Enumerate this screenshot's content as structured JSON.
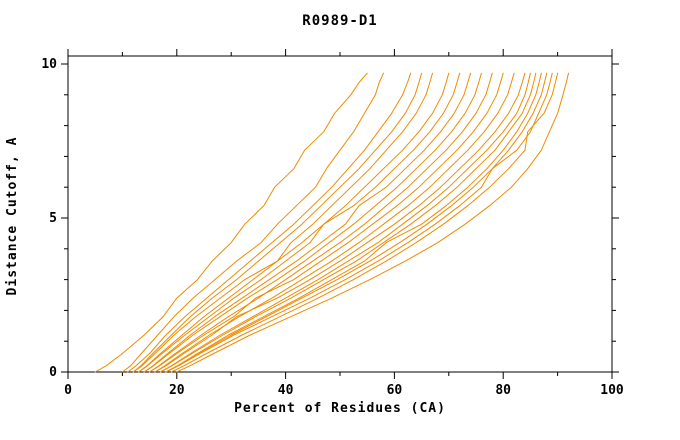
{
  "chart_data": {
    "type": "line",
    "title": "R0989-D1",
    "xlabel": "Percent of Residues (CA)",
    "ylabel": "Distance Cutoff, A",
    "xlim": [
      0,
      100
    ],
    "ylim": [
      0,
      10
    ],
    "x_ticks": [
      0,
      20,
      40,
      60,
      80,
      100
    ],
    "x_minor_ticks": [
      10,
      30,
      50,
      70,
      90
    ],
    "y_ticks": [
      0,
      5,
      10
    ],
    "y_minor_ticks": [
      1,
      2,
      3,
      4,
      6,
      7,
      8,
      9
    ],
    "grid": false,
    "legend": "none",
    "line_color": "#f08a00",
    "axis_color": "#000000",
    "background_color": "#ffffff",
    "y_levels": [
      0,
      0.2,
      0.6,
      1.2,
      1.8,
      2.4,
      3.0,
      3.6,
      4.2,
      4.8,
      5.4,
      6.0,
      6.6,
      7.2,
      7.8,
      8.4,
      9.0,
      9.4,
      9.7
    ],
    "series": [
      {
        "x": [
          5,
          7,
          10,
          14,
          17.5,
          20,
          23.8,
          26.5,
          30,
          32.5,
          36,
          38,
          41.5,
          43.5,
          47,
          49,
          52,
          53.5,
          55
        ]
      },
      {
        "x": [
          10,
          11.5,
          13.5,
          16.5,
          19.5,
          23,
          27,
          31,
          35.5,
          38.5,
          42,
          45.5,
          47.5,
          50,
          52.5,
          54.5,
          56.5,
          57.2,
          58
        ]
      },
      {
        "x": [
          11,
          12.5,
          15,
          18,
          21.5,
          25.5,
          29.5,
          33.5,
          37.5,
          41.5,
          45,
          48.5,
          51.5,
          54.5,
          57,
          59.5,
          61.5,
          62.4,
          63
        ]
      },
      {
        "x": [
          12,
          13.4,
          15.6,
          19,
          22.5,
          26.5,
          31,
          35,
          39,
          43,
          46.5,
          50,
          53.5,
          56.5,
          59.5,
          62,
          63.8,
          64.5,
          65
        ]
      },
      {
        "x": [
          12,
          13.6,
          16,
          19.5,
          23.5,
          28,
          32.5,
          38.5,
          41,
          45,
          48.5,
          52,
          55.5,
          58.5,
          61.5,
          64,
          65.8,
          66.5,
          67
        ]
      },
      {
        "x": [
          13,
          14.5,
          17,
          21,
          25,
          29.5,
          34,
          38.5,
          43,
          47,
          51,
          54.5,
          58,
          61.5,
          64.5,
          67,
          68.8,
          69.5,
          70
        ]
      },
      {
        "x": [
          13,
          14.6,
          17.3,
          21.5,
          26,
          30.5,
          35.5,
          40,
          44.5,
          47,
          52.5,
          56.5,
          60,
          63.5,
          66.5,
          69,
          70.8,
          71.5,
          72
        ]
      },
      {
        "x": [
          14,
          15.6,
          18.3,
          22.5,
          27,
          32,
          37,
          42,
          46.5,
          51,
          53.5,
          58.5,
          62,
          65.5,
          68.5,
          71,
          72.8,
          73.5,
          74
        ]
      },
      {
        "x": [
          14,
          15.7,
          18.6,
          23,
          28,
          33,
          38.5,
          43.5,
          48,
          52.5,
          56.5,
          60.5,
          64,
          67.5,
          70.5,
          73,
          74.8,
          75.5,
          76
        ]
      },
      {
        "x": [
          15,
          16.7,
          19.7,
          24.5,
          29.5,
          35,
          40,
          45,
          50,
          54.5,
          58.5,
          62.5,
          66,
          69.5,
          72.5,
          75,
          76.8,
          77.5,
          78
        ]
      },
      {
        "x": [
          15,
          16.8,
          20,
          25,
          30.5,
          34.5,
          41.5,
          46.5,
          51.5,
          56,
          60.5,
          64.5,
          68,
          71.5,
          74.5,
          77,
          78.8,
          79.5,
          80
        ]
      },
      {
        "x": [
          16,
          17.8,
          21,
          26,
          31.5,
          37.5,
          43,
          48.5,
          53.5,
          58,
          62.5,
          66.5,
          70,
          73.5,
          76.5,
          79,
          80.8,
          81.5,
          82
        ]
      },
      {
        "x": [
          16,
          18,
          21.3,
          26.5,
          31,
          38.5,
          44.5,
          50,
          55,
          60,
          64.5,
          68.5,
          72,
          75.5,
          78.5,
          81,
          82.8,
          83.5,
          84
        ]
      },
      {
        "x": [
          17,
          19,
          22.5,
          28,
          34,
          40,
          46,
          51.5,
          57,
          61.5,
          66,
          70,
          73.5,
          77,
          80,
          82.5,
          84,
          84.6,
          85
        ]
      },
      {
        "x": [
          17,
          19.1,
          22.8,
          28.5,
          34.5,
          41,
          47,
          53,
          58,
          63,
          67.5,
          71.5,
          75,
          78.5,
          81,
          83.5,
          85,
          85.6,
          86
        ]
      },
      {
        "x": [
          18,
          20.1,
          23.8,
          29.5,
          36,
          42.5,
          48.5,
          54.5,
          58.5,
          65,
          69.5,
          73.5,
          77,
          80,
          82.5,
          84.5,
          86,
          86.6,
          87
        ]
      },
      {
        "x": [
          18,
          20.2,
          24,
          30,
          36.5,
          43,
          49.5,
          55.5,
          61,
          66,
          70.5,
          74.5,
          78,
          81,
          83.5,
          85.5,
          87,
          87.6,
          88
        ]
      },
      {
        "x": [
          18,
          20.3,
          24.3,
          30.5,
          37.5,
          44.5,
          51,
          57,
          62.5,
          67.5,
          72,
          76,
          78,
          82.5,
          85,
          86.5,
          88,
          88.6,
          89
        ]
      },
      {
        "x": [
          19,
          21.3,
          25.5,
          32,
          39,
          46,
          52.5,
          58.5,
          64,
          69,
          73.5,
          77.5,
          81,
          84,
          84.5,
          87.5,
          89,
          89.6,
          90
        ]
      },
      {
        "x": [
          20,
          22.4,
          26.8,
          33.5,
          41,
          48.5,
          55.5,
          62,
          68,
          73,
          77.5,
          81.5,
          84.5,
          87,
          88.5,
          90,
          91,
          91.6,
          92
        ]
      }
    ]
  }
}
